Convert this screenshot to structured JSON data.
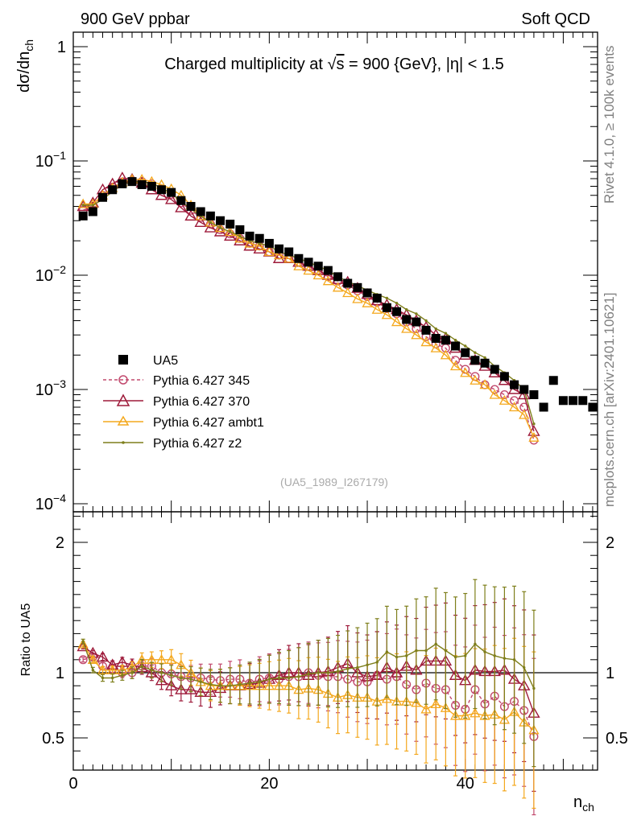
{
  "header": {
    "left": "900 GeV ppbar",
    "right": "Soft QCD"
  },
  "side": {
    "rivet": "Rivet 4.1.0, ≥ 100k events",
    "mcplots": "mcplots.cern.ch [arXiv:2401.10621]"
  },
  "title": {
    "prefix": "Charged multiplicity at ",
    "sqrt_symbol": "√",
    "s": "s",
    "suffix": " = 900 {GeV}, |η| < 1.5"
  },
  "analysis_label": "(UA5_1989_I267179)",
  "legend": {
    "data": "UA5",
    "s345": "Pythia 6.427 345",
    "s370": "Pythia 6.427 370",
    "ambt1": "Pythia 6.427 ambt1",
    "z2": "Pythia 6.427 z2"
  },
  "colors": {
    "data": "#000000",
    "s345": "#c24a6e",
    "s370": "#9e1a3a",
    "ambt1": "#f4a81d",
    "z2": "#7e7f1b"
  },
  "chart_data": [
    {
      "type": "scatter",
      "panel": "main",
      "ylabel": "dσ/dn",
      "ylabel_sub": "ch",
      "yscale": "log",
      "ylim": [
        0.0001,
        1
      ],
      "xlim": [
        0,
        53.5
      ],
      "ytick_labels": [
        {
          "value": 1,
          "base": "1",
          "exp": ""
        },
        {
          "value": 0.1,
          "base": "10",
          "exp": "−1"
        },
        {
          "value": 0.01,
          "base": "10",
          "exp": "−2"
        },
        {
          "value": 0.001,
          "base": "10",
          "exp": "−3"
        },
        {
          "value": 0.0001,
          "base": "10",
          "exp": "−4"
        }
      ],
      "x": [
        1,
        2,
        3,
        4,
        5,
        6,
        7,
        8,
        9,
        10,
        11,
        12,
        13,
        14,
        15,
        16,
        17,
        18,
        19,
        20,
        21,
        22,
        23,
        24,
        25,
        26,
        27,
        28,
        29,
        30,
        31,
        32,
        33,
        34,
        35,
        36,
        37,
        38,
        39,
        40,
        41,
        42,
        43,
        44,
        45,
        46,
        47,
        48,
        49,
        50,
        51,
        52,
        53
      ],
      "series": [
        {
          "name": "UA5",
          "key": "data",
          "values": [
            0.033,
            0.036,
            0.048,
            0.056,
            0.063,
            0.066,
            0.062,
            0.06,
            0.056,
            0.053,
            0.045,
            0.04,
            0.036,
            0.033,
            0.03,
            0.028,
            0.025,
            0.022,
            0.021,
            0.019,
            0.017,
            0.016,
            0.014,
            0.013,
            0.012,
            0.011,
            0.0097,
            0.0085,
            0.0078,
            0.007,
            0.0063,
            0.0052,
            0.0048,
            0.0041,
            0.0039,
            0.0033,
            0.0028,
            0.0027,
            0.0024,
            0.0021,
            0.0018,
            0.0017,
            0.0015,
            0.0013,
            0.0011,
            0.001,
            0.0009,
            0.0007,
            0.0012,
            0.0008,
            0.0008,
            0.0008,
            0.0007
          ]
        },
        {
          "name": "Pythia 6.427 345",
          "key": "s345",
          "values": [
            0.037,
            0.04,
            0.05,
            0.059,
            0.065,
            0.067,
            0.066,
            0.063,
            0.057,
            0.051,
            0.043,
            0.037,
            0.032,
            0.028,
            0.025,
            0.023,
            0.021,
            0.019,
            0.018,
            0.016,
            0.015,
            0.014,
            0.013,
            0.012,
            0.011,
            0.0097,
            0.0089,
            0.0082,
            0.0073,
            0.0065,
            0.0058,
            0.0051,
            0.0046,
            0.0039,
            0.0034,
            0.0029,
            0.0025,
            0.0023,
            0.0018,
            0.0015,
            0.0013,
            0.0011,
            0.001,
            0.0009,
            0.0008,
            0.0007,
            0.00036
          ]
        },
        {
          "name": "Pythia 6.427 370",
          "key": "s370",
          "values": [
            0.04,
            0.043,
            0.056,
            0.063,
            0.071,
            0.069,
            0.064,
            0.056,
            0.05,
            0.046,
            0.039,
            0.033,
            0.029,
            0.026,
            0.024,
            0.022,
            0.02,
            0.018,
            0.017,
            0.016,
            0.014,
            0.014,
            0.013,
            0.012,
            0.011,
            0.01,
            0.0092,
            0.0087,
            0.0077,
            0.0068,
            0.006,
            0.0055,
            0.005,
            0.0045,
            0.004,
            0.0035,
            0.003,
            0.0028,
            0.0023,
            0.002,
            0.0018,
            0.0016,
            0.0014,
            0.0012,
            0.001,
            0.0009,
            0.00043
          ]
        },
        {
          "name": "Pythia 6.427 ambt1",
          "key": "ambt1",
          "values": [
            0.042,
            0.042,
            0.05,
            0.058,
            0.065,
            0.069,
            0.069,
            0.066,
            0.062,
            0.057,
            0.05,
            0.041,
            0.033,
            0.029,
            0.026,
            0.024,
            0.021,
            0.019,
            0.018,
            0.016,
            0.015,
            0.014,
            0.012,
            0.011,
            0.01,
            0.0089,
            0.0078,
            0.007,
            0.0062,
            0.0057,
            0.005,
            0.0045,
            0.0039,
            0.0034,
            0.003,
            0.0026,
            0.0023,
            0.002,
            0.0016,
            0.0014,
            0.0012,
            0.0011,
            0.0009,
            0.0008,
            0.0007,
            0.0006,
            0.00038
          ]
        },
        {
          "name": "Pythia 6.427 z2",
          "key": "z2",
          "values": [
            0.041,
            0.041,
            0.046,
            0.054,
            0.062,
            0.066,
            0.066,
            0.064,
            0.058,
            0.052,
            0.044,
            0.038,
            0.033,
            0.029,
            0.026,
            0.024,
            0.022,
            0.02,
            0.019,
            0.018,
            0.016,
            0.015,
            0.014,
            0.013,
            0.012,
            0.011,
            0.0097,
            0.0088,
            0.0081,
            0.0074,
            0.0068,
            0.0063,
            0.0057,
            0.005,
            0.0046,
            0.004,
            0.0034,
            0.0031,
            0.0027,
            0.0024,
            0.0021,
            0.0019,
            0.0016,
            0.0014,
            0.0012,
            0.001,
            0.0005
          ]
        }
      ]
    },
    {
      "type": "line",
      "panel": "ratio",
      "ylabel": "Ratio to UA5",
      "xlabel": "n",
      "xlabel_sub": "ch",
      "ylim": [
        0.35,
        2.25
      ],
      "xlim": [
        0,
        53.5
      ],
      "xtick_labels": [
        {
          "value": 0,
          "label": "0"
        },
        {
          "value": 20,
          "label": "20"
        },
        {
          "value": 40,
          "label": "40"
        }
      ],
      "ytick_labels": [
        {
          "value": 2,
          "label": "2"
        },
        {
          "value": 1,
          "label": "1"
        },
        {
          "value": 0.5,
          "label": "0.5"
        }
      ],
      "reference_line": 1,
      "x": [
        1,
        2,
        3,
        4,
        5,
        6,
        7,
        8,
        9,
        10,
        11,
        12,
        13,
        14,
        15,
        16,
        17,
        18,
        19,
        20,
        21,
        22,
        23,
        24,
        25,
        26,
        27,
        28,
        29,
        30,
        31,
        32,
        33,
        34,
        35,
        36,
        37,
        38,
        39,
        40,
        41,
        42,
        43,
        44,
        45,
        46,
        47
      ],
      "series": [
        {
          "name": "Pythia 6.427 345",
          "key": "s345",
          "values": [
            1.1,
            1.12,
            1.05,
            1.03,
            1.0,
            1.0,
            1.05,
            1.05,
            1.0,
            0.99,
            0.97,
            0.96,
            0.96,
            0.95,
            0.94,
            0.95,
            0.95,
            0.92,
            0.95,
            0.96,
            0.95,
            0.97,
            0.97,
            1.0,
            0.98,
            0.97,
            0.97,
            0.95,
            0.93,
            0.93,
            0.98,
            0.95,
            0.97,
            0.91,
            0.87,
            0.92,
            0.88,
            0.87,
            0.75,
            0.72,
            0.87,
            0.76,
            0.82,
            0.74,
            0.78,
            0.71,
            0.51
          ]
        },
        {
          "name": "Pythia 6.427 370",
          "key": "s370",
          "values": [
            1.2,
            1.15,
            1.12,
            1.06,
            1.08,
            1.06,
            1.04,
            1.0,
            0.94,
            0.9,
            0.87,
            0.87,
            0.85,
            0.85,
            0.88,
            0.9,
            0.9,
            0.91,
            0.92,
            0.95,
            0.98,
            1.0,
            1.0,
            0.98,
            1.0,
            1.01,
            1.04,
            1.07,
            1.0,
            0.97,
            0.98,
            1.04,
            1.0,
            1.05,
            1.02,
            1.09,
            1.09,
            1.09,
            0.98,
            0.94,
            1.02,
            1.01,
            1.01,
            1.02,
            0.95,
            0.9,
            0.69
          ]
        },
        {
          "name": "Pythia 6.427 ambt1",
          "key": "ambt1",
          "values": [
            1.22,
            1.1,
            1.02,
            1.02,
            1.02,
            1.04,
            1.1,
            1.1,
            1.1,
            1.1,
            1.06,
            1.0,
            0.93,
            0.9,
            0.9,
            0.9,
            0.9,
            0.9,
            0.9,
            0.9,
            0.9,
            0.9,
            0.87,
            0.88,
            0.87,
            0.84,
            0.81,
            0.83,
            0.81,
            0.81,
            0.78,
            0.8,
            0.78,
            0.78,
            0.77,
            0.72,
            0.76,
            0.73,
            0.67,
            0.67,
            0.69,
            0.67,
            0.68,
            0.64,
            0.7,
            0.62,
            0.56
          ]
        },
        {
          "name": "Pythia 6.427 z2",
          "key": "z2",
          "values": [
            1.24,
            1.02,
            0.96,
            0.96,
            0.98,
            1.0,
            1.05,
            1.02,
            1.0,
            0.98,
            0.96,
            0.95,
            0.93,
            0.91,
            0.9,
            0.9,
            0.91,
            0.92,
            0.93,
            0.95,
            0.96,
            0.96,
            0.97,
            0.99,
            1.0,
            1.0,
            1.01,
            1.03,
            1.04,
            1.06,
            1.08,
            1.16,
            1.12,
            1.13,
            1.17,
            1.17,
            1.22,
            1.17,
            1.12,
            1.13,
            1.22,
            1.16,
            1.13,
            1.11,
            1.1,
            1.04,
            0.88
          ]
        }
      ]
    }
  ]
}
